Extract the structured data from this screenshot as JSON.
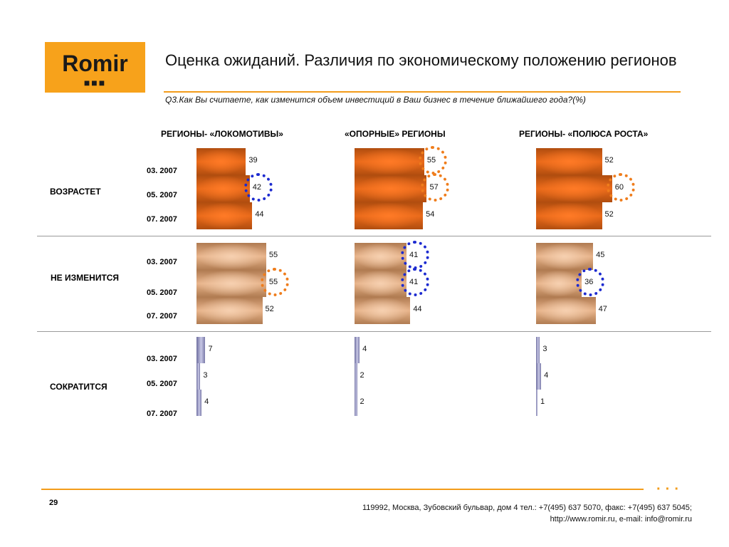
{
  "logo": {
    "text": "Romir",
    "dots": "■■■"
  },
  "header": {
    "title": "Оценка ожиданий. Различия по экономическому положению регионов",
    "question": "Q3.Как Вы считаете, как изменится объем инвестиций в Ваш бизнес в течение ближайшего года?(%)"
  },
  "footer": {
    "page": "29",
    "address_line1": "119992, Москва, Зубовский бульвар, дом 4   тел.: +7(495) 637 5070, факс: +7(495) 637 5045;",
    "address_line2": "http://www.romir.ru, e-mail: info@romir.ru",
    "dots": "···"
  },
  "colors": {
    "accent": "#f39c1a",
    "highlight_orange": "#ef7d1c",
    "highlight_blue": "#1d2bd0"
  },
  "chart_data": {
    "type": "bar",
    "orientation": "horizontal",
    "periods": [
      "03. 2007",
      "05. 2007",
      "07. 2007"
    ],
    "columns": [
      "РЕГИОНЫ- «ЛОКОМОТИВЫ»",
      "«ОПОРНЫЕ» РЕГИОНЫ",
      "РЕГИОНЫ- «ПОЛЮСА РОСТА»"
    ],
    "groups": [
      {
        "name": "ВОЗРАСТЕТ",
        "values": [
          [
            39,
            42,
            44
          ],
          [
            55,
            57,
            54
          ],
          [
            52,
            60,
            52
          ]
        ],
        "highlights": [
          [
            "",
            "blue",
            ""
          ],
          [
            "orange",
            "orange",
            ""
          ],
          [
            "",
            "orange",
            ""
          ]
        ]
      },
      {
        "name": "НЕ ИЗМЕНИТСЯ",
        "values": [
          [
            55,
            55,
            52
          ],
          [
            41,
            41,
            44
          ],
          [
            45,
            36,
            47
          ]
        ],
        "highlights": [
          [
            "",
            "orange",
            ""
          ],
          [
            "blue",
            "blue",
            ""
          ],
          [
            "",
            "blue",
            ""
          ]
        ]
      },
      {
        "name": "СОКРАТИТСЯ",
        "values": [
          [
            7,
            3,
            4
          ],
          [
            4,
            2,
            2
          ],
          [
            3,
            4,
            1
          ]
        ],
        "highlights": [
          [
            "",
            "",
            ""
          ],
          [
            "",
            "",
            ""
          ],
          [
            "",
            "",
            ""
          ]
        ]
      }
    ],
    "unit": "%"
  }
}
